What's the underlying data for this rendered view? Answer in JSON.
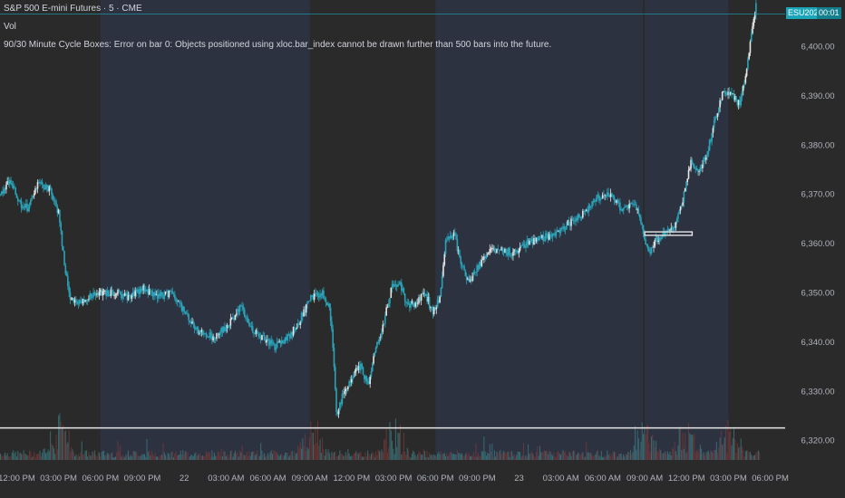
{
  "legend": {
    "symbol": "S&P 500 E-mini Futures · 5 · CME",
    "volume": "Vol",
    "indicator": "90/30 Minute Cycle Boxes: Error on bar 0: Objects positioned using xloc.bar_index cannot be drawn further than 500 bars into the future."
  },
  "price_badge": {
    "ticker": "ESU2025",
    "countdown": "00:01"
  },
  "colors": {
    "background": "#2a2a2a",
    "session_shade": "#2d3240",
    "candle": "#2aa3b8",
    "candle_up": "#e6e6e6",
    "axis_text": "#b0b4bd",
    "level_line": "#e6e6e6",
    "badge_bg": "#1aa5b8",
    "vol_up": "#3c7f86",
    "vol_down": "#7a3a3a"
  },
  "chart_data": {
    "type": "candlestick",
    "symbol": "S&P 500 E-mini Futures",
    "interval": "5",
    "exchange": "CME",
    "ylim": [
      6316,
      6409
    ],
    "y_ticks": [
      6320,
      6330,
      6340,
      6350,
      6360,
      6370,
      6380,
      6390,
      6400
    ],
    "y_tick_labels": [
      "6,320.00",
      "6,330.00",
      "6,340.00",
      "6,350.00",
      "6,360.00",
      "6,370.00",
      "6,380.00",
      "6,390.00",
      "6,400.00"
    ],
    "x_tick_labels": [
      "12:00 PM",
      "03:00 PM",
      "06:00 PM",
      "09:00 PM",
      "22",
      "03:00 AM",
      "06:00 AM",
      "09:00 AM",
      "12:00 PM",
      "03:00 PM",
      "06:00 PM",
      "09:00 PM",
      "23",
      "03:00 AM",
      "06:00 AM",
      "09:00 AM",
      "12:00 PM",
      "03:00 PM",
      "06:00 PM"
    ],
    "x_tick_hours": [
      12,
      15,
      18,
      21,
      24,
      27,
      30,
      33,
      36,
      39,
      42,
      45,
      48,
      51,
      54,
      57,
      60,
      63,
      66
    ],
    "x_range_hours": [
      10.8,
      67.0
    ],
    "price_path": [
      [
        10.8,
        6370
      ],
      [
        11.5,
        6373
      ],
      [
        12.2,
        6368
      ],
      [
        12.8,
        6367
      ],
      [
        13.5,
        6372
      ],
      [
        14.3,
        6371
      ],
      [
        15.0,
        6366
      ],
      [
        15.4,
        6355
      ],
      [
        15.8,
        6349
      ],
      [
        16.3,
        6348
      ],
      [
        17.0,
        6349
      ],
      [
        18.0,
        6350
      ],
      [
        19.0,
        6350
      ],
      [
        20.0,
        6349
      ],
      [
        21.0,
        6351
      ],
      [
        22.0,
        6349
      ],
      [
        23.0,
        6350
      ],
      [
        24.0,
        6346
      ],
      [
        25.0,
        6342
      ],
      [
        26.0,
        6341
      ],
      [
        27.0,
        6343
      ],
      [
        28.0,
        6347
      ],
      [
        28.7,
        6343
      ],
      [
        29.5,
        6341
      ],
      [
        30.5,
        6339
      ],
      [
        31.5,
        6341
      ],
      [
        32.2,
        6344
      ],
      [
        33.0,
        6349
      ],
      [
        33.8,
        6350
      ],
      [
        34.4,
        6347
      ],
      [
        34.7,
        6336
      ],
      [
        34.9,
        6325
      ],
      [
        35.3,
        6329
      ],
      [
        36.0,
        6333
      ],
      [
        36.6,
        6335
      ],
      [
        37.2,
        6331
      ],
      [
        37.6,
        6338
      ],
      [
        38.3,
        6344
      ],
      [
        38.8,
        6351
      ],
      [
        39.4,
        6352
      ],
      [
        40.0,
        6347
      ],
      [
        40.6,
        6348
      ],
      [
        41.2,
        6350
      ],
      [
        41.8,
        6346
      ],
      [
        42.3,
        6349
      ],
      [
        42.7,
        6360
      ],
      [
        43.3,
        6362
      ],
      [
        43.9,
        6355
      ],
      [
        44.4,
        6352
      ],
      [
        45.0,
        6355
      ],
      [
        45.7,
        6358
      ],
      [
        46.5,
        6359
      ],
      [
        47.5,
        6358
      ],
      [
        48.5,
        6360
      ],
      [
        49.5,
        6361
      ],
      [
        50.5,
        6362
      ],
      [
        51.5,
        6364
      ],
      [
        52.5,
        6366
      ],
      [
        53.5,
        6369
      ],
      [
        54.5,
        6370
      ],
      [
        55.3,
        6367
      ],
      [
        56.0,
        6368
      ],
      [
        56.6,
        6366
      ],
      [
        57.0,
        6360
      ],
      [
        57.3,
        6358
      ],
      [
        57.8,
        6361
      ],
      [
        58.5,
        6362
      ],
      [
        59.2,
        6364
      ],
      [
        59.8,
        6370
      ],
      [
        60.3,
        6377
      ],
      [
        60.8,
        6374
      ],
      [
        61.5,
        6379
      ],
      [
        62.0,
        6385
      ],
      [
        62.6,
        6391
      ],
      [
        63.2,
        6390
      ],
      [
        63.8,
        6388
      ],
      [
        64.3,
        6396
      ],
      [
        64.7,
        6404
      ],
      [
        65.0,
        6409
      ]
    ],
    "sessions_shaded_hours": [
      [
        18,
        33
      ],
      [
        42,
        57
      ],
      [
        57,
        63
      ]
    ],
    "volume_spike_hours": [
      15.0,
      33.2,
      39.0,
      57.0,
      60.0,
      63.0
    ],
    "horizontal_levels": [
      6322.5
    ],
    "range_box": {
      "from_hour": 57.0,
      "to_hour": 60.4,
      "high": 6362.3,
      "low": 6361.6
    },
    "last_price_line": 6406.5,
    "grid": false
  }
}
